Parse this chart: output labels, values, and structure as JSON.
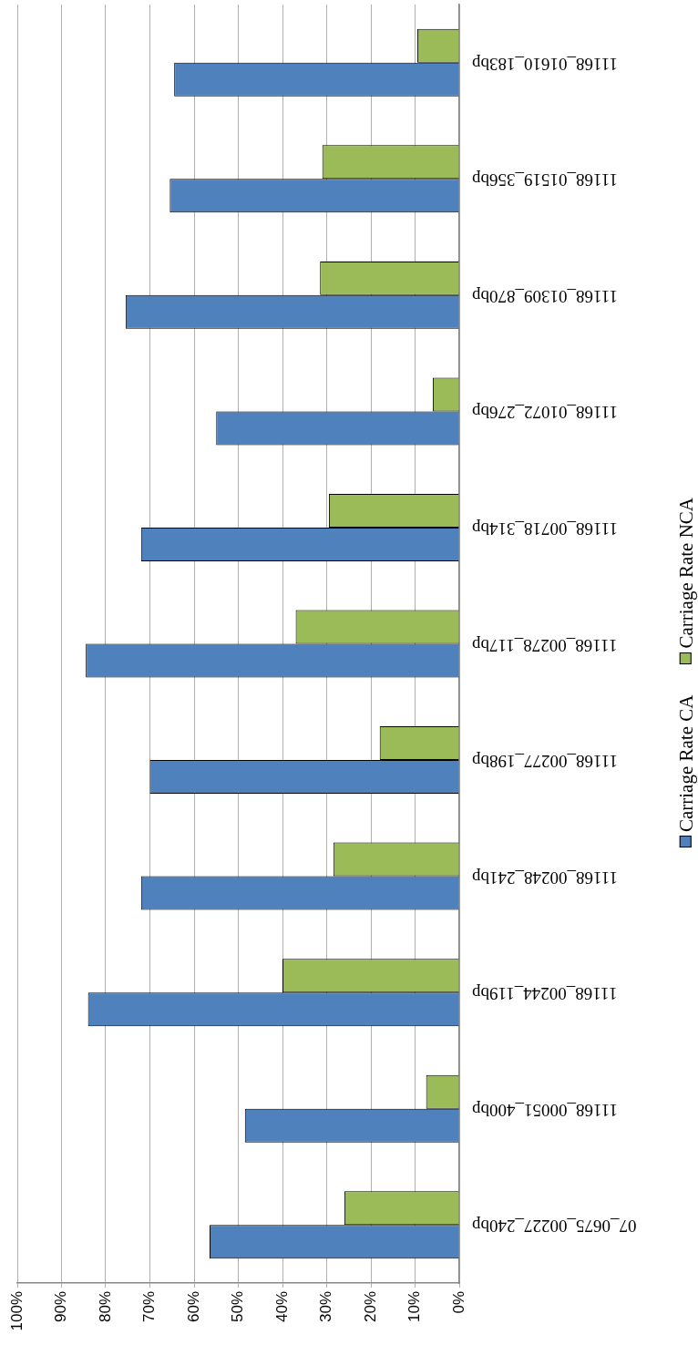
{
  "chart_data": {
    "type": "bar",
    "orientation": "horizontal",
    "categories": [
      "11168_01610_183bp",
      "11168_01519_356bp",
      "11168_01309_870bp",
      "11168_01072_276bp",
      "11168_00718_314bp",
      "11168_00278_117bp",
      "11168_00277_198bp",
      "11168_00248_241bp",
      "11168_00244_119bp",
      "11168_00051_400bp",
      "07_0675_00227_240bp"
    ],
    "series": [
      {
        "name": "Carriage Rate CA",
        "color": "#4f81bd",
        "values": [
          64.5,
          65.5,
          75.5,
          55,
          72,
          84.5,
          70,
          72,
          84,
          48.5,
          56.5
        ]
      },
      {
        "name": "Carriage Rate NCA",
        "color": "#9bbb59",
        "values": [
          9.5,
          31,
          31.5,
          6,
          29.5,
          37,
          18,
          28.5,
          40,
          7.5,
          26
        ]
      }
    ],
    "xlim": [
      100,
      0
    ],
    "xticks": [
      {
        "value": 0,
        "label": "0%"
      },
      {
        "value": 10,
        "label": "10%"
      },
      {
        "value": 20,
        "label": "20%"
      },
      {
        "value": 30,
        "label": "30%"
      },
      {
        "value": 40,
        "label": "40%"
      },
      {
        "value": 50,
        "label": "50%"
      },
      {
        "value": 60,
        "label": "60%"
      },
      {
        "value": 70,
        "label": "70%"
      },
      {
        "value": 80,
        "label": "80%"
      },
      {
        "value": 90,
        "label": "90%"
      },
      {
        "value": 100,
        "label": "100%"
      }
    ],
    "grid": "x",
    "legend": "right"
  }
}
